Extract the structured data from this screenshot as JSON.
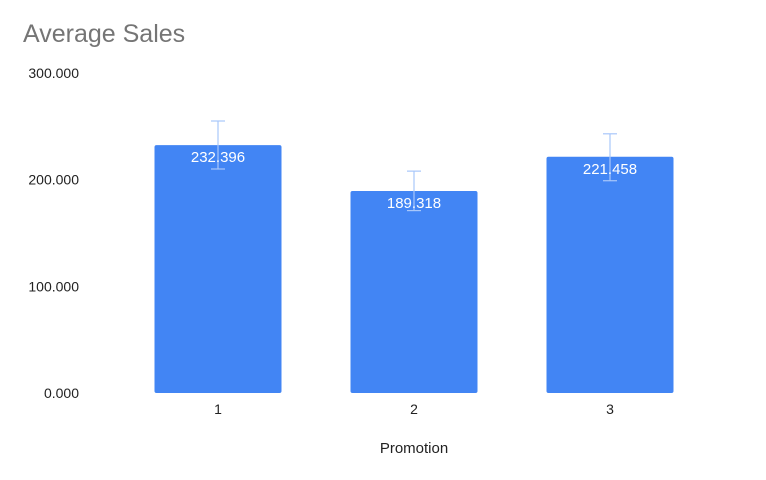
{
  "chart_data": {
    "type": "bar",
    "title": "Average Sales",
    "xlabel": "Promotion",
    "ylabel": "",
    "categories": [
      "1",
      "2",
      "3"
    ],
    "values": [
      232.396,
      189.318,
      221.458
    ],
    "value_labels": [
      "232.396",
      "189.318",
      "221.458"
    ],
    "error_bars": [
      {
        "low": 210,
        "high": 255
      },
      {
        "low": 171,
        "high": 208
      },
      {
        "low": 199,
        "high": 243
      }
    ],
    "ylim": [
      0,
      300
    ],
    "yticks": [
      0,
      100,
      200,
      300
    ],
    "ytick_labels": [
      "0.000",
      "100.000",
      "200.000",
      "300.000"
    ],
    "grid": false,
    "legend": "none",
    "colors": {
      "bar": "#4285f4",
      "error_bar": "#a8c7fa",
      "title": "#757575",
      "text": "#222222",
      "value_label": "#ffffff"
    }
  }
}
